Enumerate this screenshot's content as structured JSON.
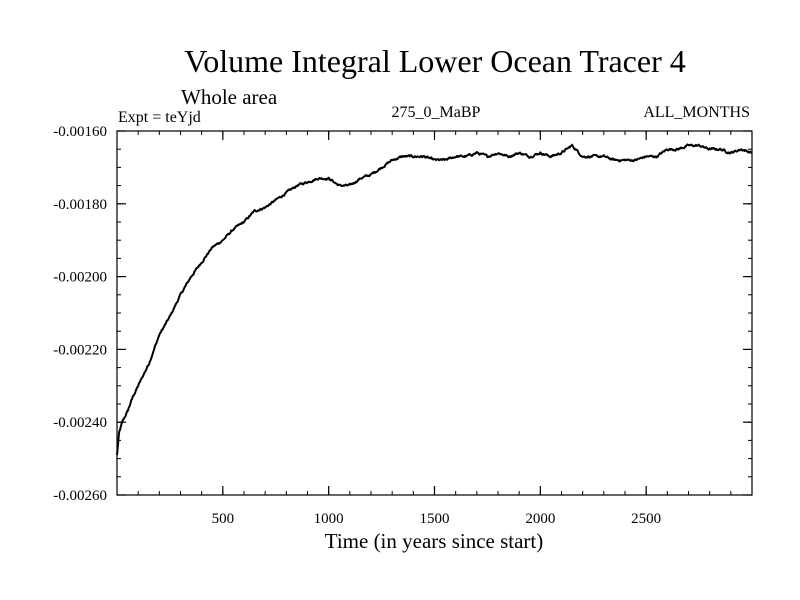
{
  "chart_data": {
    "type": "line",
    "title": "Volume Integral Lower Ocean Tracer 4",
    "subtitle": "Whole area",
    "left_label": "Expt = teYjd",
    "center_label": "275_0_MaBP",
    "right_label": "ALL_MONTHS",
    "xlabel": "Time (in years since start)",
    "ylabel": "",
    "xlim": [
      0,
      3000
    ],
    "ylim": [
      -0.0026,
      -0.0016
    ],
    "x_major_ticks": [
      500,
      1000,
      1500,
      2000,
      2500
    ],
    "x_tick_labels": [
      "500",
      "1000",
      "1500",
      "2000",
      "2500"
    ],
    "x_minor_step": 100,
    "y_major_ticks": [
      -0.0026,
      -0.0024,
      -0.0022,
      -0.002,
      -0.0018,
      -0.0016
    ],
    "y_tick_labels": [
      "-0.00260",
      "-0.00240",
      "-0.00220",
      "-0.00200",
      "-0.00180",
      "-0.00160"
    ],
    "y_minor_step": 5e-05,
    "grid": false,
    "series": [
      {
        "name": "Volume Integral Lower Ocean Tracer 4",
        "color": "#000000",
        "x": [
          0,
          10,
          25,
          50,
          75,
          100,
          150,
          200,
          250,
          300,
          350,
          400,
          450,
          500,
          550,
          600,
          650,
          700,
          750,
          800,
          850,
          900,
          950,
          1000,
          1050,
          1100,
          1150,
          1200,
          1250,
          1300,
          1350,
          1400,
          1450,
          1500,
          1550,
          1600,
          1650,
          1700,
          1750,
          1800,
          1850,
          1900,
          1950,
          2000,
          2050,
          2100,
          2150,
          2200,
          2250,
          2300,
          2350,
          2400,
          2450,
          2500,
          2550,
          2600,
          2650,
          2700,
          2750,
          2800,
          2850,
          2900,
          2950,
          3000
        ],
        "values": [
          -0.00249,
          -0.00243,
          -0.0024,
          -0.00237,
          -0.00233,
          -0.0023,
          -0.00224,
          -0.00216,
          -0.00211,
          -0.00205,
          -0.002,
          -0.00196,
          -0.00192,
          -0.0019,
          -0.00187,
          -0.00185,
          -0.00182,
          -0.00181,
          -0.00179,
          -0.00177,
          -0.00175,
          -0.00174,
          -0.00173,
          -0.00173,
          -0.00175,
          -0.00175,
          -0.00173,
          -0.00172,
          -0.0017,
          -0.00168,
          -0.00167,
          -0.00167,
          -0.00167,
          -0.00168,
          -0.00168,
          -0.00167,
          -0.00167,
          -0.00166,
          -0.00167,
          -0.00166,
          -0.00167,
          -0.00166,
          -0.00167,
          -0.00166,
          -0.00167,
          -0.00166,
          -0.00164,
          -0.00167,
          -0.00167,
          -0.00167,
          -0.00168,
          -0.00168,
          -0.00168,
          -0.00167,
          -0.00167,
          -0.00165,
          -0.00165,
          -0.00164,
          -0.00164,
          -0.00165,
          -0.00165,
          -0.00166,
          -0.00165,
          -0.00166
        ]
      }
    ]
  }
}
